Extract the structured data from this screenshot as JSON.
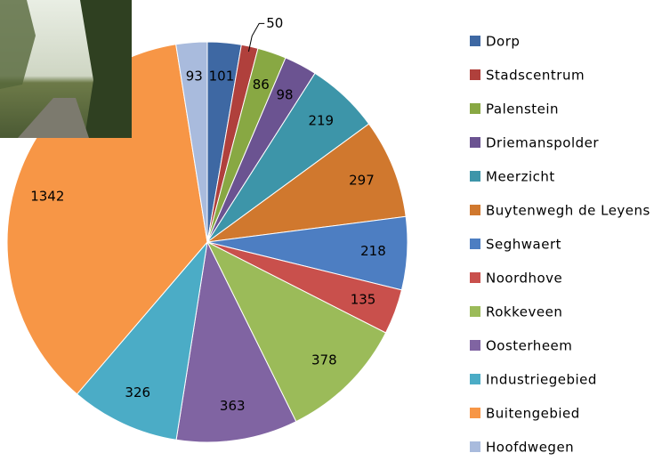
{
  "chart_data": {
    "type": "pie",
    "categories": [
      "Dorp",
      "Stadscentrum",
      "Palenstein",
      "Driemanspolder",
      "Meerzicht",
      "Buytenwegh de Leyens",
      "Seghwaert",
      "Noordhove",
      "Rokkeveen",
      "Oosterheem",
      "Industriegebied",
      "Buitengebied",
      "Hoofdwegen"
    ],
    "values": [
      101,
      50,
      86,
      98,
      219,
      297,
      218,
      135,
      378,
      363,
      326,
      1342,
      93
    ],
    "colors": [
      "#3e68a3",
      "#b0403c",
      "#88a843",
      "#6b5391",
      "#3d95a9",
      "#d0782e",
      "#4d7ec2",
      "#c9504c",
      "#9bbb59",
      "#8064a2",
      "#4bacc6",
      "#f79646",
      "#a9bbdd"
    ],
    "legend": "right"
  }
}
